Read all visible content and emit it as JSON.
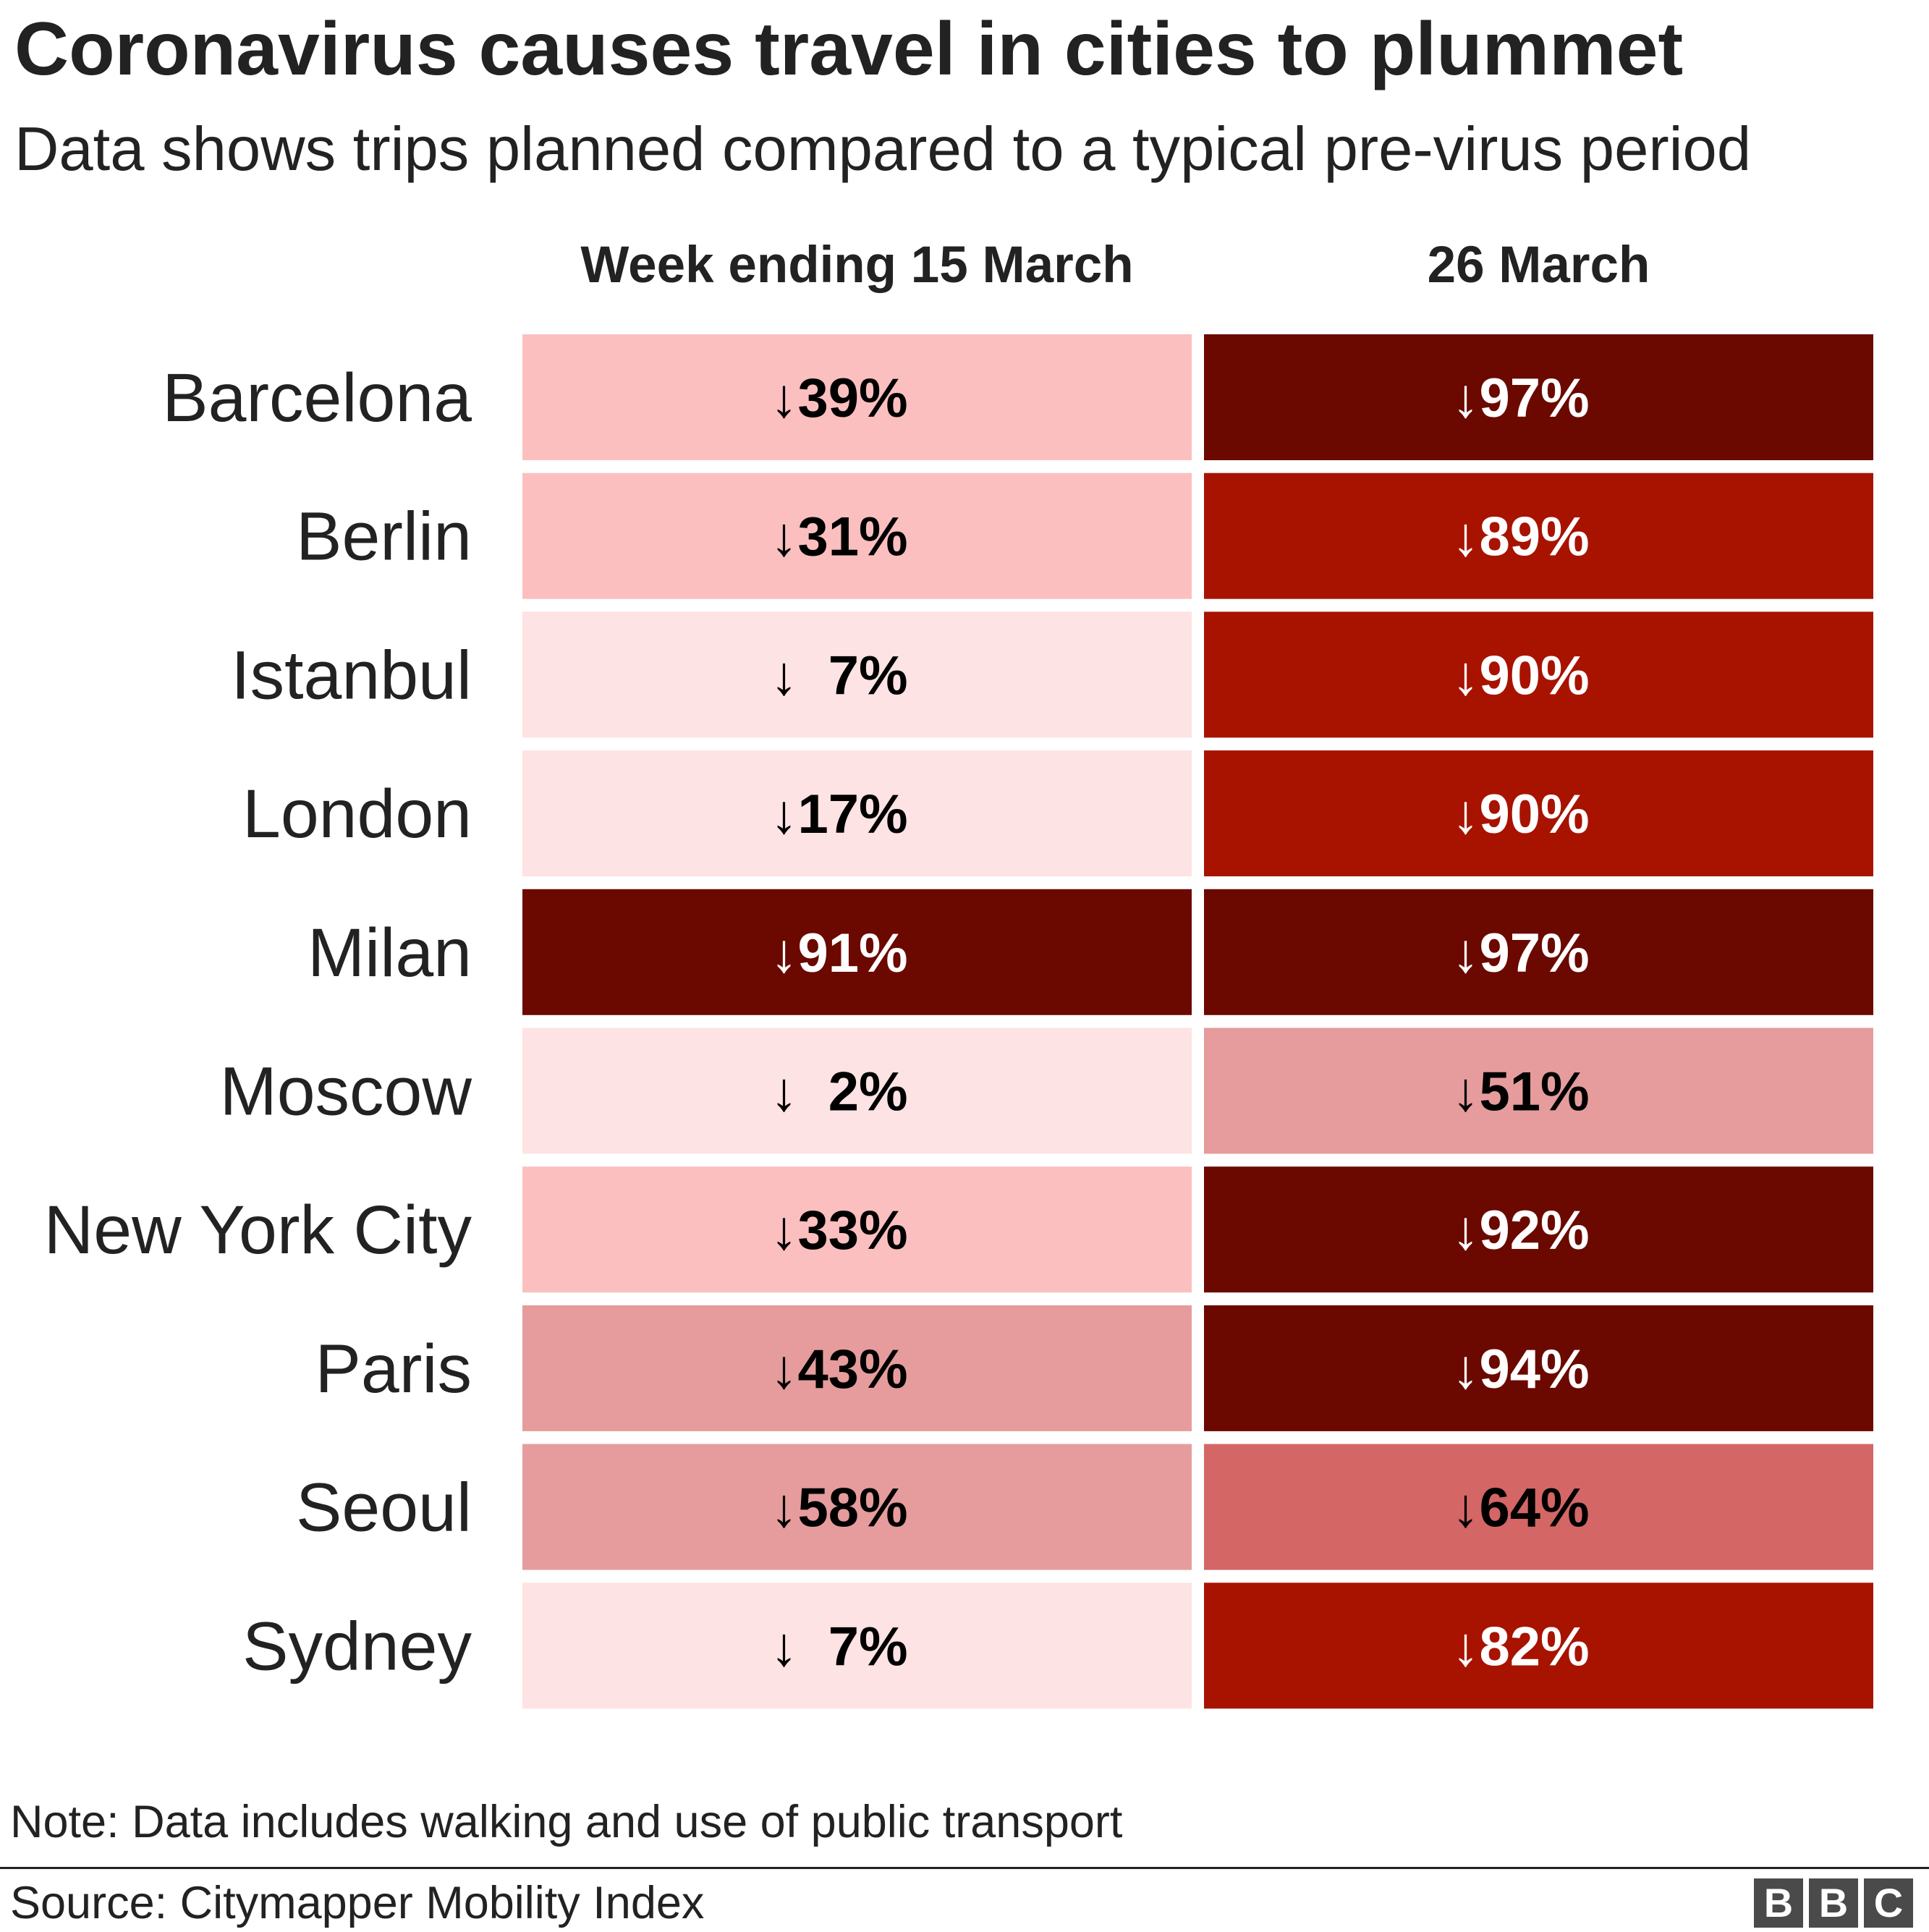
{
  "title": "Coronavirus causes travel in cities to plummet",
  "subtitle": "Data shows trips planned compared to a typical pre-virus period",
  "chart_data": {
    "type": "heatmap",
    "title": "Coronavirus causes travel in cities to plummet",
    "subtitle": "Data shows trips planned compared to a typical pre-virus period",
    "columns": [
      "Week ending 15 March",
      "26 March"
    ],
    "rows": [
      "Barcelona",
      "Berlin",
      "Istanbul",
      "London",
      "Milan",
      "Moscow",
      "New York City",
      "Paris",
      "Seoul",
      "Sydney"
    ],
    "values": [
      [
        39,
        97
      ],
      [
        31,
        89
      ],
      [
        7,
        90
      ],
      [
        17,
        90
      ],
      [
        91,
        97
      ],
      [
        2,
        51
      ],
      [
        33,
        92
      ],
      [
        43,
        94
      ],
      [
        58,
        64
      ],
      [
        7,
        82
      ]
    ],
    "value_prefix": "↓",
    "value_suffix": "%",
    "color_scale": [
      {
        "max": 20,
        "color": "#fde3e3",
        "text": "#000000"
      },
      {
        "max": 40,
        "color": "#fcbfbf",
        "text": "#000000"
      },
      {
        "max": 60,
        "color": "#e69c9c",
        "text": "#000000"
      },
      {
        "max": 80,
        "color": "#d46666",
        "text": "#000000"
      },
      {
        "max": 90,
        "color": "#a81300",
        "text": "#ffffff"
      },
      {
        "max": 100,
        "color": "#6b0900",
        "text": "#ffffff"
      }
    ]
  },
  "note": "Note: Data includes walking and use of public transport",
  "source": "Source: Citymapper Mobility Index",
  "logo": [
    "B",
    "B",
    "C"
  ]
}
